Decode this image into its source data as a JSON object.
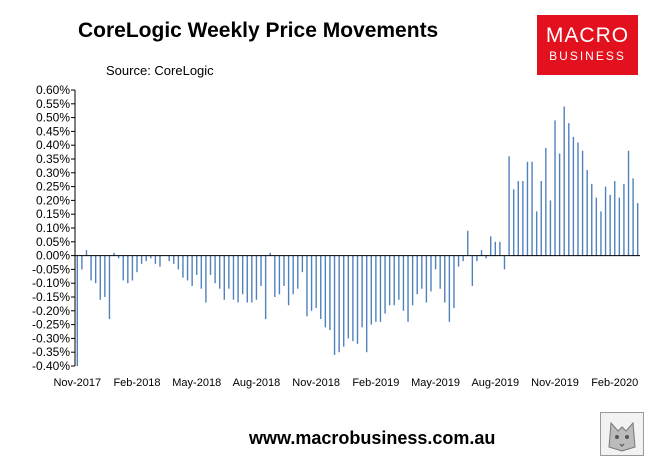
{
  "header": {
    "title": "CoreLogic Weekly Price Movements",
    "source": "Source: CoreLogic"
  },
  "logo": {
    "line1": "MACRO",
    "line2": "BUSINESS"
  },
  "footer": {
    "website": "www.macrobusiness.com.au"
  },
  "colors": {
    "bar": "#4f81bd",
    "logo_bg": "#e3101e"
  },
  "chart_data": {
    "type": "bar",
    "ylim": [
      -0.4,
      0.6
    ],
    "y_ticks": [
      "0.60%",
      "0.55%",
      "0.50%",
      "0.45%",
      "0.40%",
      "0.35%",
      "0.30%",
      "0.25%",
      "0.20%",
      "0.15%",
      "0.10%",
      "0.05%",
      "0.00%",
      "-0.05%",
      "-0.10%",
      "-0.15%",
      "-0.20%",
      "-0.25%",
      "-0.30%",
      "-0.35%",
      "-0.40%"
    ],
    "x_ticks": [
      {
        "label": "Nov-2017",
        "index": 0
      },
      {
        "label": "Feb-2018",
        "index": 13
      },
      {
        "label": "May-2018",
        "index": 26
      },
      {
        "label": "Aug-2018",
        "index": 39
      },
      {
        "label": "Nov-2018",
        "index": 52
      },
      {
        "label": "Feb-2019",
        "index": 65
      },
      {
        "label": "May-2019",
        "index": 78
      },
      {
        "label": "Aug-2019",
        "index": 91
      },
      {
        "label": "Nov-2019",
        "index": 104
      },
      {
        "label": "Feb-2020",
        "index": 117
      }
    ],
    "grid": false,
    "legend": "none",
    "values": [
      -0.4,
      -0.05,
      0.02,
      -0.09,
      -0.1,
      -0.16,
      -0.15,
      -0.23,
      0.01,
      -0.01,
      -0.09,
      -0.1,
      -0.09,
      -0.06,
      -0.03,
      -0.02,
      -0.01,
      -0.03,
      -0.04,
      0.0,
      -0.02,
      -0.03,
      -0.05,
      -0.08,
      -0.09,
      -0.11,
      -0.07,
      -0.12,
      -0.17,
      -0.07,
      -0.1,
      -0.12,
      -0.16,
      -0.12,
      -0.16,
      -0.17,
      -0.14,
      -0.17,
      -0.17,
      -0.16,
      -0.11,
      -0.23,
      0.01,
      -0.15,
      -0.14,
      -0.11,
      -0.18,
      -0.14,
      -0.12,
      -0.06,
      -0.22,
      -0.2,
      -0.19,
      -0.23,
      -0.26,
      -0.27,
      -0.36,
      -0.35,
      -0.33,
      -0.3,
      -0.31,
      -0.32,
      -0.26,
      -0.35,
      -0.25,
      -0.24,
      -0.24,
      -0.21,
      -0.18,
      -0.18,
      -0.16,
      -0.2,
      -0.24,
      -0.18,
      -0.14,
      -0.12,
      -0.17,
      -0.13,
      -0.05,
      -0.12,
      -0.17,
      -0.24,
      -0.19,
      -0.04,
      -0.02,
      0.09,
      -0.11,
      -0.02,
      0.02,
      -0.01,
      0.07,
      0.05,
      0.05,
      -0.05,
      0.36,
      0.24,
      0.27,
      0.27,
      0.34,
      0.34,
      0.16,
      0.27,
      0.39,
      0.2,
      0.49,
      0.37,
      0.54,
      0.48,
      0.43,
      0.41,
      0.38,
      0.31,
      0.26,
      0.21,
      0.16,
      0.25,
      0.22,
      0.27,
      0.21,
      0.26,
      0.38,
      0.28,
      0.19
    ]
  }
}
